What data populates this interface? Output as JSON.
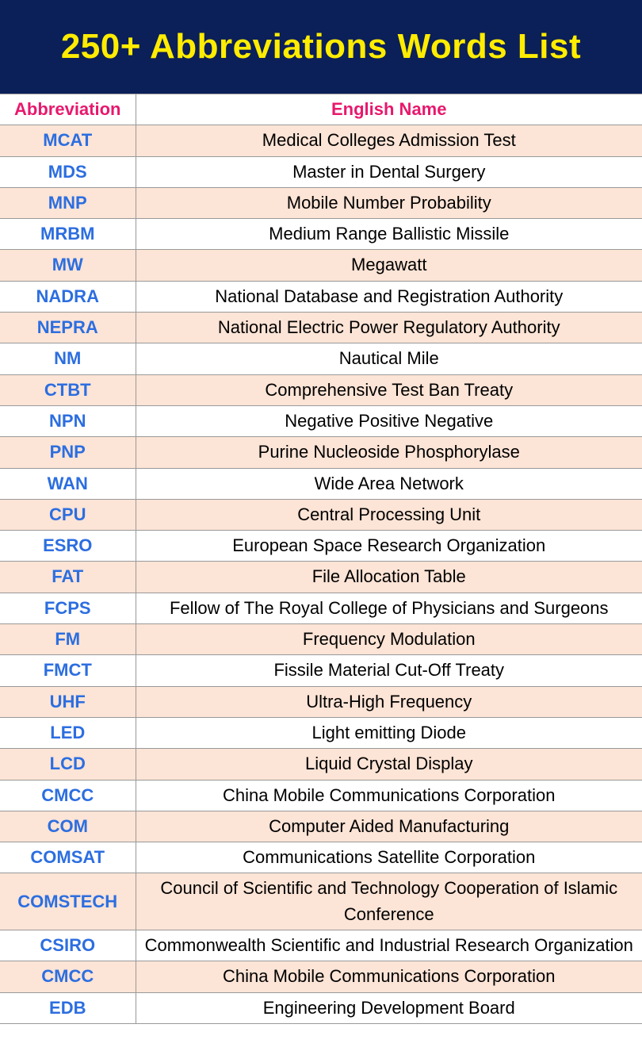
{
  "header": {
    "title": "250+ Abbreviations Words List"
  },
  "table": {
    "columns": [
      "Abbreviation",
      "English Name"
    ],
    "rows": [
      [
        "MCAT",
        "Medical Colleges Admission Test"
      ],
      [
        "MDS",
        "Master in Dental Surgery"
      ],
      [
        "MNP",
        "Mobile Number Probability"
      ],
      [
        "MRBM",
        "Medium Range Ballistic Missile"
      ],
      [
        "MW",
        "Megawatt"
      ],
      [
        "NADRA",
        "National Database and Registration Authority"
      ],
      [
        "NEPRA",
        "National Electric Power Regulatory Authority"
      ],
      [
        "NM",
        "Nautical Mile"
      ],
      [
        "CTBT",
        "Comprehensive Test Ban Treaty"
      ],
      [
        "NPN",
        "Negative Positive Negative"
      ],
      [
        "PNP",
        "Purine Nucleoside Phosphorylase"
      ],
      [
        "WAN",
        "Wide Area Network"
      ],
      [
        "CPU",
        "Central Processing Unit"
      ],
      [
        "ESRO",
        "European Space Research Organization"
      ],
      [
        "FAT",
        "File Allocation Table"
      ],
      [
        "FCPS",
        "Fellow of The Royal College of Physicians and Surgeons"
      ],
      [
        "FM",
        "Frequency Modulation"
      ],
      [
        "FMCT",
        "Fissile Material Cut-Off Treaty"
      ],
      [
        "UHF",
        "Ultra-High Frequency"
      ],
      [
        "LED",
        "Light emitting Diode"
      ],
      [
        "LCD",
        "Liquid Crystal Display"
      ],
      [
        "CMCC",
        "China Mobile Communications Corporation"
      ],
      [
        "COM",
        "Computer Aided Manufacturing"
      ],
      [
        "COMSAT",
        "Communications Satellite Corporation"
      ],
      [
        "COMSTECH",
        "Council of Scientific and Technology Cooperation of Islamic Conference"
      ],
      [
        "CSIRO",
        "Commonwealth Scientific and Industrial Research Organization"
      ],
      [
        "CMCC",
        "China Mobile Communications Corporation"
      ],
      [
        "EDB",
        "Engineering Development Board"
      ]
    ]
  }
}
